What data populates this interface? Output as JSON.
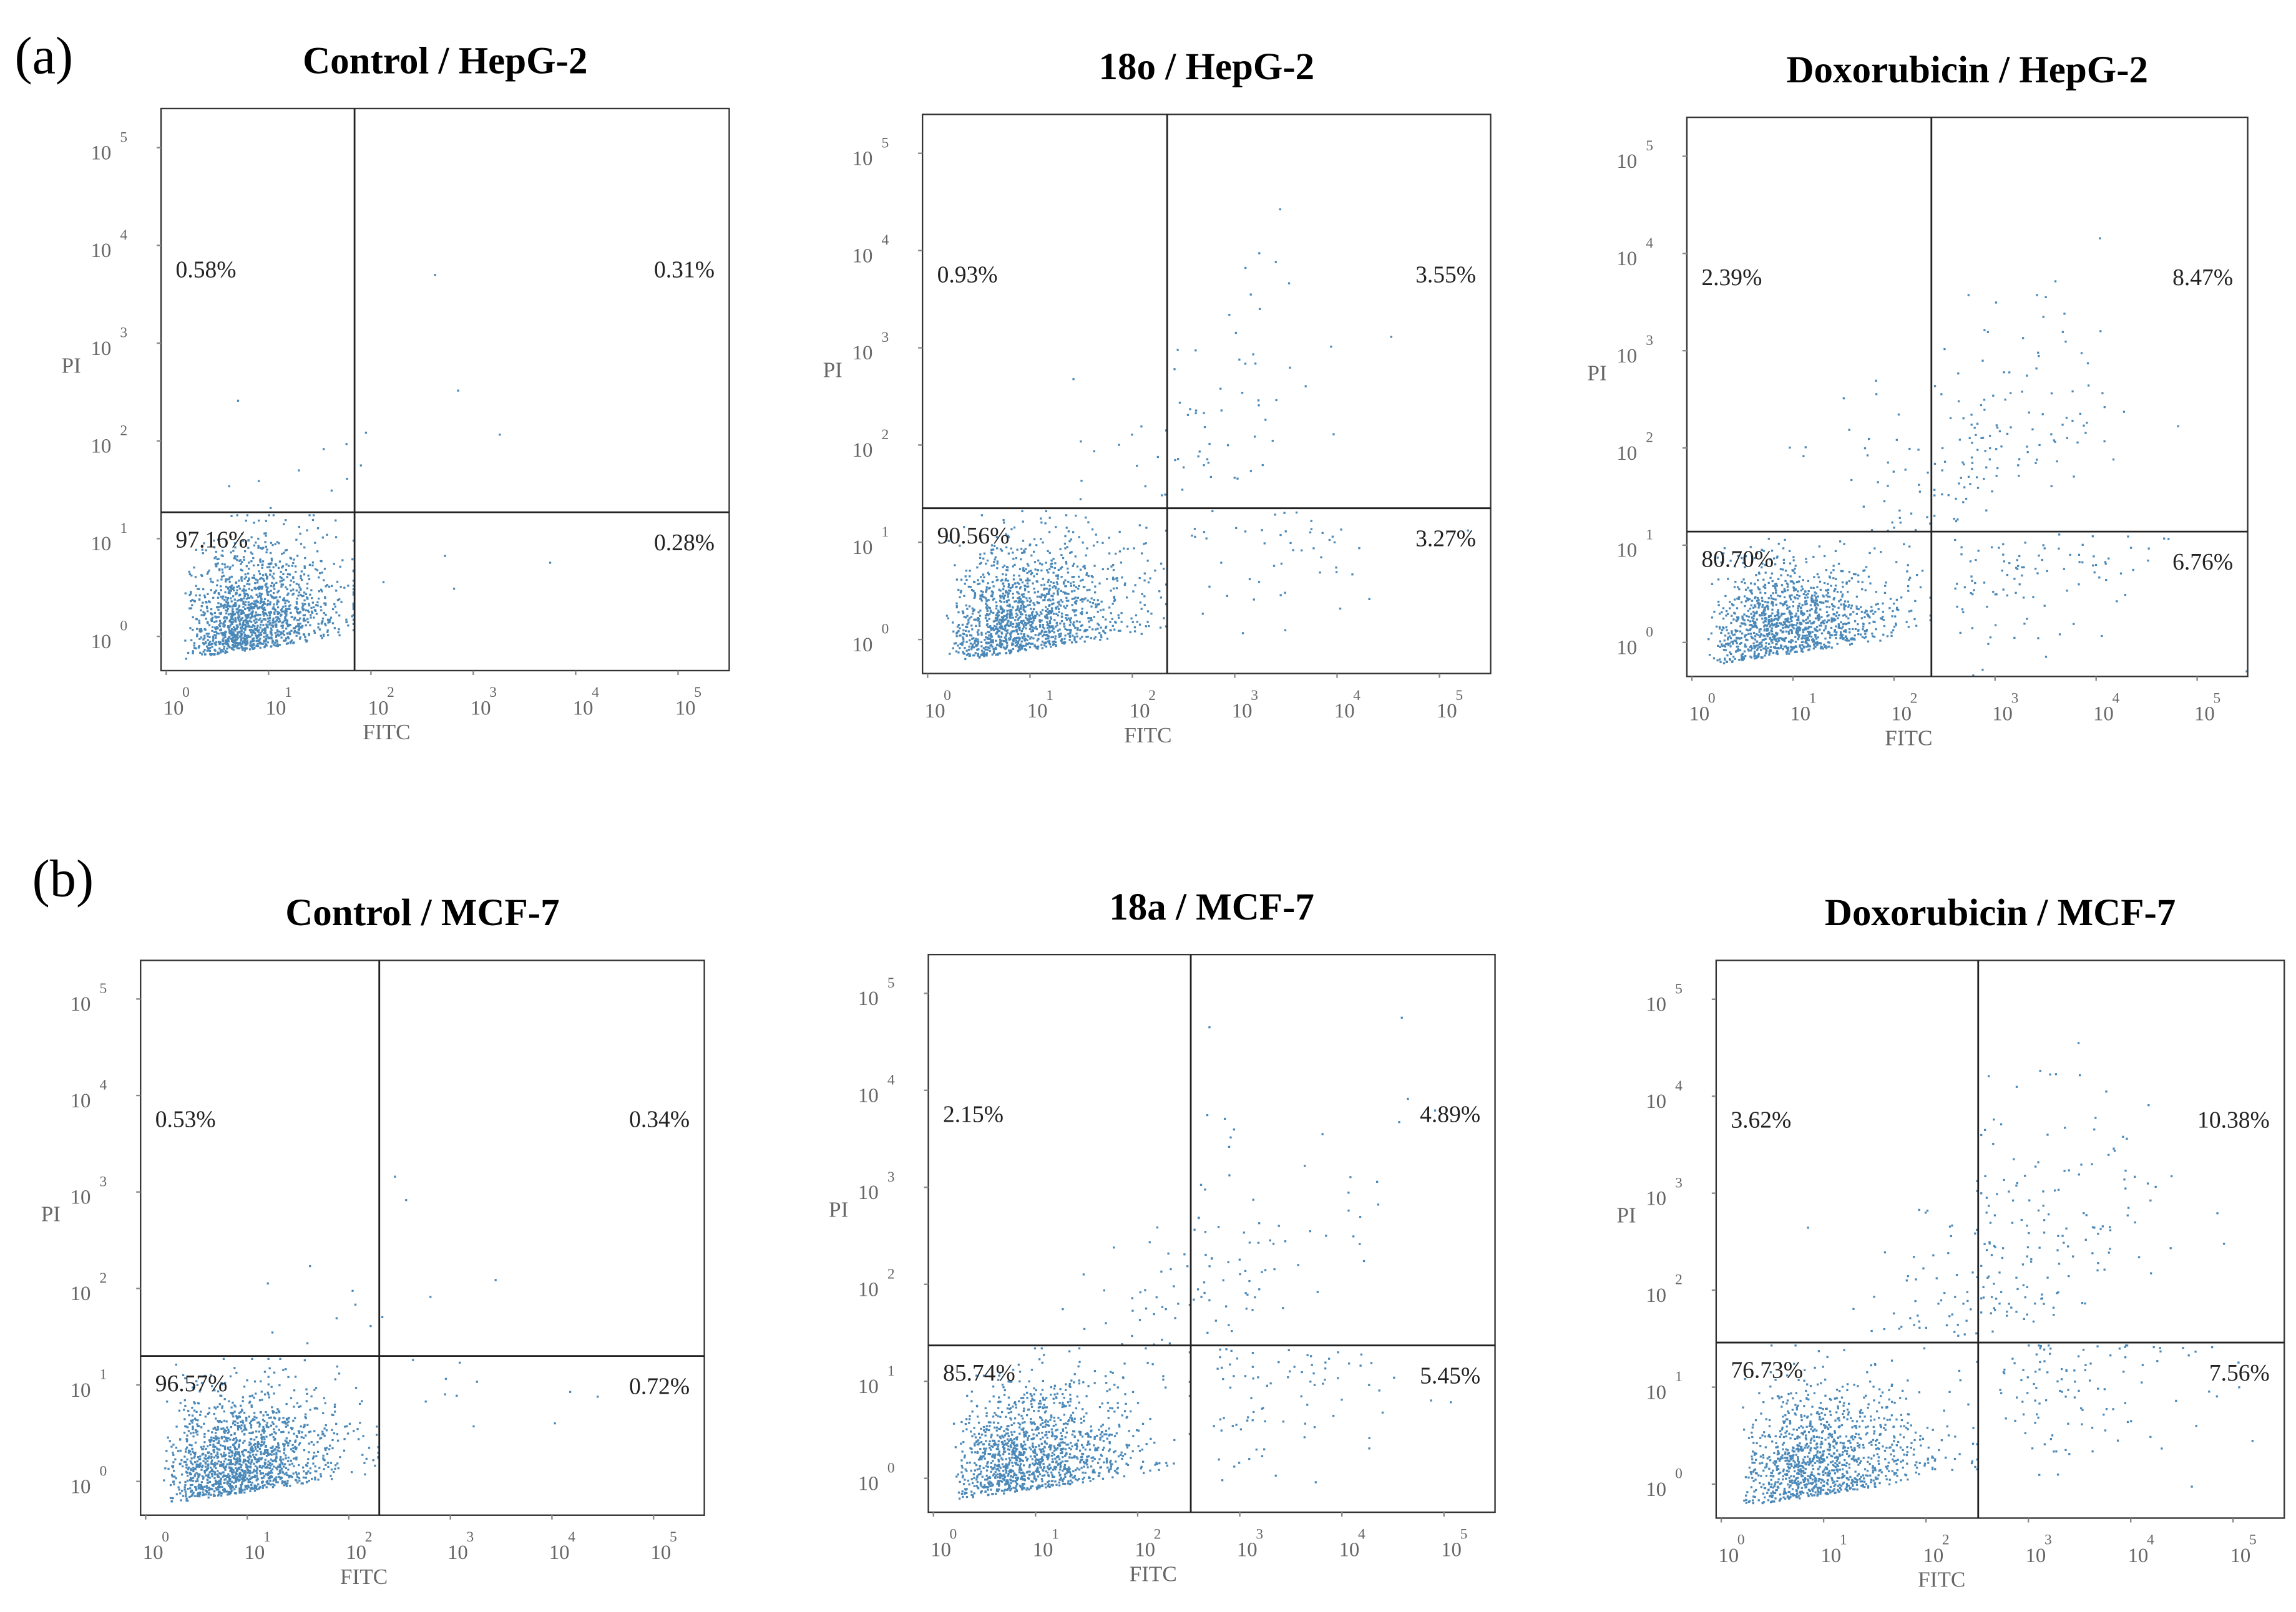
{
  "panel_labels": [
    "(a)",
    "(b)"
  ],
  "chart_data": [
    {
      "type": "scatter",
      "title": "Control / HepG-2",
      "xlabel": "FITC",
      "ylabel": "PI",
      "log_scale": true,
      "tick_base": "10",
      "xlim": [
        -0.05,
        5.5
      ],
      "ylim": [
        -0.35,
        5.4
      ],
      "xticks": [
        0,
        1,
        2,
        3,
        4,
        5
      ],
      "yticks": [
        0,
        1,
        2,
        3,
        4,
        5
      ],
      "gate": {
        "x": 1.84,
        "y": 1.27
      },
      "color": "#4a88b8",
      "values": [
        0.58,
        0.31,
        97.16,
        0.28
      ],
      "value_labels": [
        "0.58%",
        "0.31%",
        "97.16%",
        "0.28%"
      ]
    },
    {
      "type": "scatter",
      "title": "18o / HepG-2",
      "xlabel": "FITC",
      "ylabel": "PI",
      "log_scale": true,
      "tick_base": "10",
      "xlim": [
        -0.05,
        5.5
      ],
      "ylim": [
        -0.35,
        5.4
      ],
      "xticks": [
        0,
        1,
        2,
        3,
        4,
        5
      ],
      "yticks": [
        0,
        1,
        2,
        3,
        4,
        5
      ],
      "gate": {
        "x": 2.34,
        "y": 1.35
      },
      "color": "#4a88b8",
      "values": [
        0.93,
        3.55,
        90.56,
        3.27
      ],
      "value_labels": [
        "0.93%",
        "3.55%",
        "90.56%",
        "3.27%"
      ]
    },
    {
      "type": "scatter",
      "title": "Doxorubicin / HepG-2",
      "xlabel": "FITC",
      "ylabel": "PI",
      "log_scale": true,
      "tick_base": "10",
      "xlim": [
        -0.05,
        5.5
      ],
      "ylim": [
        -0.35,
        5.4
      ],
      "xticks": [
        0,
        1,
        2,
        3,
        4,
        5
      ],
      "yticks": [
        0,
        1,
        2,
        3,
        4,
        5
      ],
      "gate": {
        "x": 2.37,
        "y": 1.14
      },
      "color": "#4a88b8",
      "values": [
        2.39,
        8.47,
        80.7,
        6.76
      ],
      "value_labels": [
        "2.39%",
        "8.47%",
        "80.70%",
        "6.76%"
      ]
    },
    {
      "type": "scatter",
      "title": "Control / MCF-7",
      "xlabel": "FITC",
      "ylabel": "PI",
      "log_scale": true,
      "tick_base": "10",
      "xlim": [
        -0.05,
        5.5
      ],
      "ylim": [
        -0.35,
        5.4
      ],
      "xticks": [
        0,
        1,
        2,
        3,
        4,
        5
      ],
      "yticks": [
        0,
        1,
        2,
        3,
        4,
        5
      ],
      "gate": {
        "x": 2.3,
        "y": 1.3
      },
      "color": "#4a88b8",
      "values": [
        0.53,
        0.34,
        96.57,
        0.72
      ],
      "value_labels": [
        "0.53%",
        "0.34%",
        "96.57%",
        "0.72%"
      ]
    },
    {
      "type": "scatter",
      "title": "18a / MCF-7",
      "xlabel": "FITC",
      "ylabel": "PI",
      "log_scale": true,
      "tick_base": "10",
      "xlim": [
        -0.05,
        5.5
      ],
      "ylim": [
        -0.35,
        5.4
      ],
      "xticks": [
        0,
        1,
        2,
        3,
        4,
        5
      ],
      "yticks": [
        0,
        1,
        2,
        3,
        4,
        5
      ],
      "gate": {
        "x": 2.52,
        "y": 1.37
      },
      "color": "#4a88b8",
      "values": [
        2.15,
        4.89,
        85.74,
        5.45
      ],
      "value_labels": [
        "2.15%",
        "4.89%",
        "85.74%",
        "5.45%"
      ]
    },
    {
      "type": "scatter",
      "title": "Doxorubicin / MCF-7",
      "xlabel": "FITC",
      "ylabel": "PI",
      "log_scale": true,
      "tick_base": "10",
      "xlim": [
        -0.05,
        5.5
      ],
      "ylim": [
        -0.35,
        5.4
      ],
      "xticks": [
        0,
        1,
        2,
        3,
        4,
        5
      ],
      "yticks": [
        0,
        1,
        2,
        3,
        4,
        5
      ],
      "gate": {
        "x": 2.51,
        "y": 1.46
      },
      "color": "#4a88b8",
      "values": [
        3.62,
        10.38,
        76.73,
        7.56
      ],
      "value_labels": [
        "3.62%",
        "10.38%",
        "76.73%",
        "7.56%"
      ]
    }
  ]
}
